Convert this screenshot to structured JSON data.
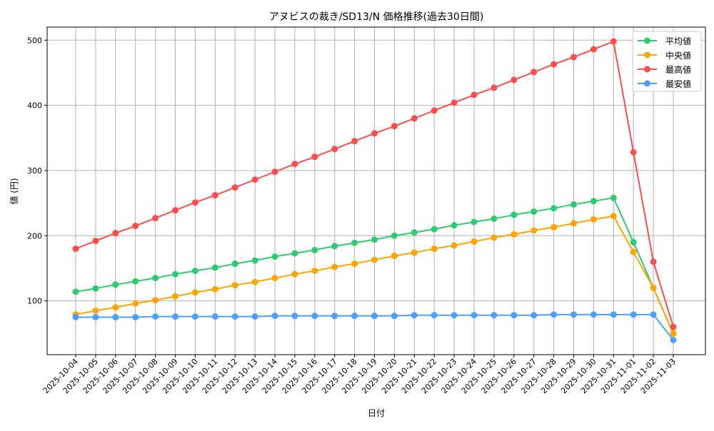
{
  "chart_data": {
    "type": "line",
    "title": "アヌビスの裁き/SD13/N 価格推移(過去30日間)",
    "xlabel": "日付",
    "ylabel": "値 (円)",
    "ylim": [
      17.5,
      520
    ],
    "yticks": [
      100,
      200,
      300,
      400,
      500
    ],
    "grid": true,
    "legend_placement": "top-right",
    "x": [
      "2025-10-04",
      "2025-10-05",
      "2025-10-06",
      "2025-10-07",
      "2025-10-08",
      "2025-10-09",
      "2025-10-10",
      "2025-10-11",
      "2025-10-12",
      "2025-10-13",
      "2025-10-14",
      "2025-10-15",
      "2025-10-16",
      "2025-10-17",
      "2025-10-18",
      "2025-10-19",
      "2025-10-20",
      "2025-10-21",
      "2025-10-22",
      "2025-10-23",
      "2025-10-24",
      "2025-10-25",
      "2025-10-26",
      "2025-10-27",
      "2025-10-28",
      "2025-10-29",
      "2025-10-30",
      "2025-10-31",
      "2025-11-01",
      "2025-11-02",
      "2025-11-03"
    ],
    "series": [
      {
        "name": "平均値",
        "color": "#2ecc71",
        "values": [
          114,
          119,
          125,
          130,
          135,
          141,
          146,
          151,
          157,
          162,
          168,
          173,
          178,
          184,
          189,
          194,
          200,
          205,
          210,
          216,
          221,
          226,
          232,
          237,
          242,
          248,
          253,
          258,
          190,
          120,
          50
        ]
      },
      {
        "name": "中央値",
        "color": "#ffa500",
        "values": [
          79,
          85,
          90,
          96,
          101,
          107,
          113,
          118,
          124,
          129,
          135,
          141,
          146,
          152,
          157,
          163,
          169,
          174,
          180,
          185,
          191,
          197,
          202,
          208,
          213,
          219,
          225,
          230,
          175,
          120,
          50
        ]
      },
      {
        "name": "最高値",
        "color": "#ff4d4d",
        "values": [
          180,
          192,
          204,
          215,
          227,
          239,
          251,
          262,
          274,
          286,
          298,
          310,
          321,
          333,
          345,
          357,
          368,
          380,
          392,
          404,
          416,
          427,
          439,
          451,
          463,
          474,
          486,
          498,
          328,
          160,
          60
        ]
      },
      {
        "name": "最安値",
        "color": "#4d9fff",
        "values": [
          75,
          75,
          75,
          75,
          76,
          76,
          76,
          76,
          76,
          76,
          77,
          77,
          77,
          77,
          77,
          77,
          77,
          78,
          78,
          78,
          78,
          78,
          78,
          78,
          79,
          79,
          79,
          79,
          79,
          79,
          40
        ]
      }
    ]
  }
}
